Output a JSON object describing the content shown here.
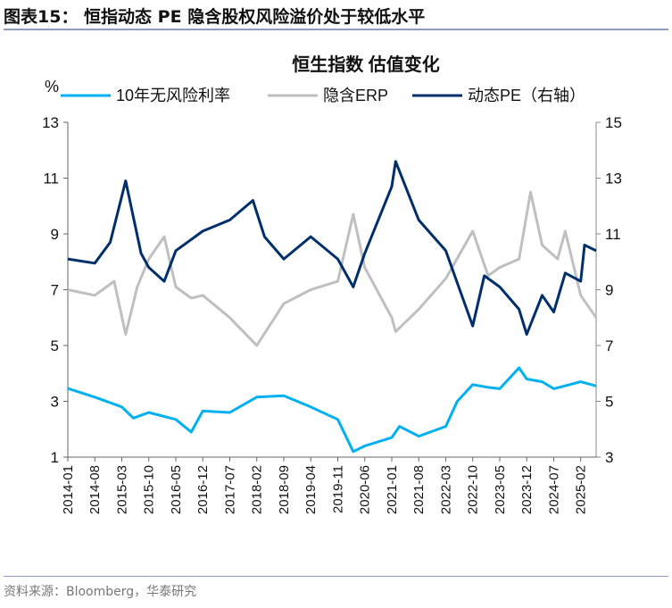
{
  "figure_title": "图表15： 恒指动态 PE 隐含股权风险溢价处于较低水平",
  "source": "资料来源：Bloomberg，华泰研究",
  "chart_data": {
    "type": "line",
    "title": "恒生指数 估值变化",
    "ylabel": "%",
    "ylim": [
      1,
      13
    ],
    "y2lim": [
      3,
      15
    ],
    "yticks": [
      1,
      3,
      5,
      7,
      9,
      11,
      13
    ],
    "y2ticks": [
      3,
      5,
      7,
      9,
      11,
      13,
      15
    ],
    "xlim": [
      "2014-01",
      "2025-06"
    ],
    "xticks": [
      "2014-01",
      "2014-08",
      "2015-03",
      "2015-10",
      "2016-05",
      "2016-12",
      "2017-07",
      "2018-02",
      "2018-09",
      "2019-04",
      "2019-11",
      "2020-06",
      "2021-01",
      "2021-08",
      "2022-03",
      "2022-10",
      "2023-05",
      "2023-12",
      "2024-07",
      "2025-02"
    ],
    "grid": false,
    "legend": "top",
    "series": [
      {
        "name": "10年无风险利率",
        "axis": "left",
        "color": "#00B0F0",
        "x": [
          "2014-01",
          "2014-08",
          "2015-03",
          "2015-06",
          "2015-10",
          "2016-05",
          "2016-09",
          "2016-12",
          "2017-07",
          "2018-02",
          "2018-09",
          "2019-04",
          "2019-11",
          "2020-03",
          "2020-06",
          "2021-01",
          "2021-03",
          "2021-08",
          "2022-03",
          "2022-06",
          "2022-10",
          "2023-02",
          "2023-05",
          "2023-10",
          "2023-12",
          "2024-04",
          "2024-07",
          "2025-02",
          "2025-06"
        ],
        "y": [
          3.46,
          3.15,
          2.8,
          2.4,
          2.6,
          2.35,
          1.9,
          2.65,
          2.6,
          3.15,
          3.2,
          2.8,
          2.35,
          1.2,
          1.4,
          1.7,
          2.1,
          1.75,
          2.1,
          3.0,
          3.6,
          3.5,
          3.45,
          4.2,
          3.8,
          3.7,
          3.45,
          3.7,
          3.55
        ]
      },
      {
        "name": "隐含ERP",
        "axis": "left",
        "color": "#BFBFBF",
        "x": [
          "2014-01",
          "2014-08",
          "2015-01",
          "2015-04",
          "2015-07",
          "2015-10",
          "2016-02",
          "2016-05",
          "2016-09",
          "2016-12",
          "2017-07",
          "2018-02",
          "2018-09",
          "2019-04",
          "2019-11",
          "2020-03",
          "2020-06",
          "2021-01",
          "2021-02",
          "2021-08",
          "2022-03",
          "2022-10",
          "2023-02",
          "2023-05",
          "2023-10",
          "2024-01",
          "2024-04",
          "2024-08",
          "2024-10",
          "2025-02",
          "2025-06"
        ],
        "y": [
          7.0,
          6.8,
          7.3,
          5.4,
          7.1,
          8.1,
          8.9,
          7.1,
          6.7,
          6.8,
          6.0,
          5.0,
          6.5,
          7.0,
          7.3,
          9.7,
          7.8,
          6.0,
          5.5,
          6.3,
          7.4,
          9.1,
          7.5,
          7.8,
          8.1,
          10.5,
          8.6,
          8.1,
          9.1,
          6.8,
          6.0
        ]
      },
      {
        "name": "动态PE（右轴）",
        "axis": "right",
        "color": "#002F6C",
        "x": [
          "2014-01",
          "2014-08",
          "2014-12",
          "2015-04",
          "2015-08",
          "2015-10",
          "2016-02",
          "2016-05",
          "2016-12",
          "2017-07",
          "2018-01",
          "2018-04",
          "2018-09",
          "2019-04",
          "2019-11",
          "2020-03",
          "2020-06",
          "2021-01",
          "2021-02",
          "2021-08",
          "2022-03",
          "2022-10",
          "2023-01",
          "2023-05",
          "2023-10",
          "2023-12",
          "2024-04",
          "2024-07",
          "2024-10",
          "2025-02",
          "2025-03",
          "2025-06"
        ],
        "y": [
          10.1,
          9.95,
          10.7,
          12.9,
          10.3,
          9.8,
          9.3,
          10.4,
          11.1,
          11.5,
          12.2,
          10.9,
          10.1,
          10.9,
          10.1,
          9.1,
          10.3,
          12.7,
          13.6,
          11.5,
          10.4,
          7.7,
          9.5,
          9.1,
          8.3,
          7.4,
          8.8,
          8.2,
          9.6,
          9.3,
          10.6,
          10.4
        ]
      }
    ]
  }
}
